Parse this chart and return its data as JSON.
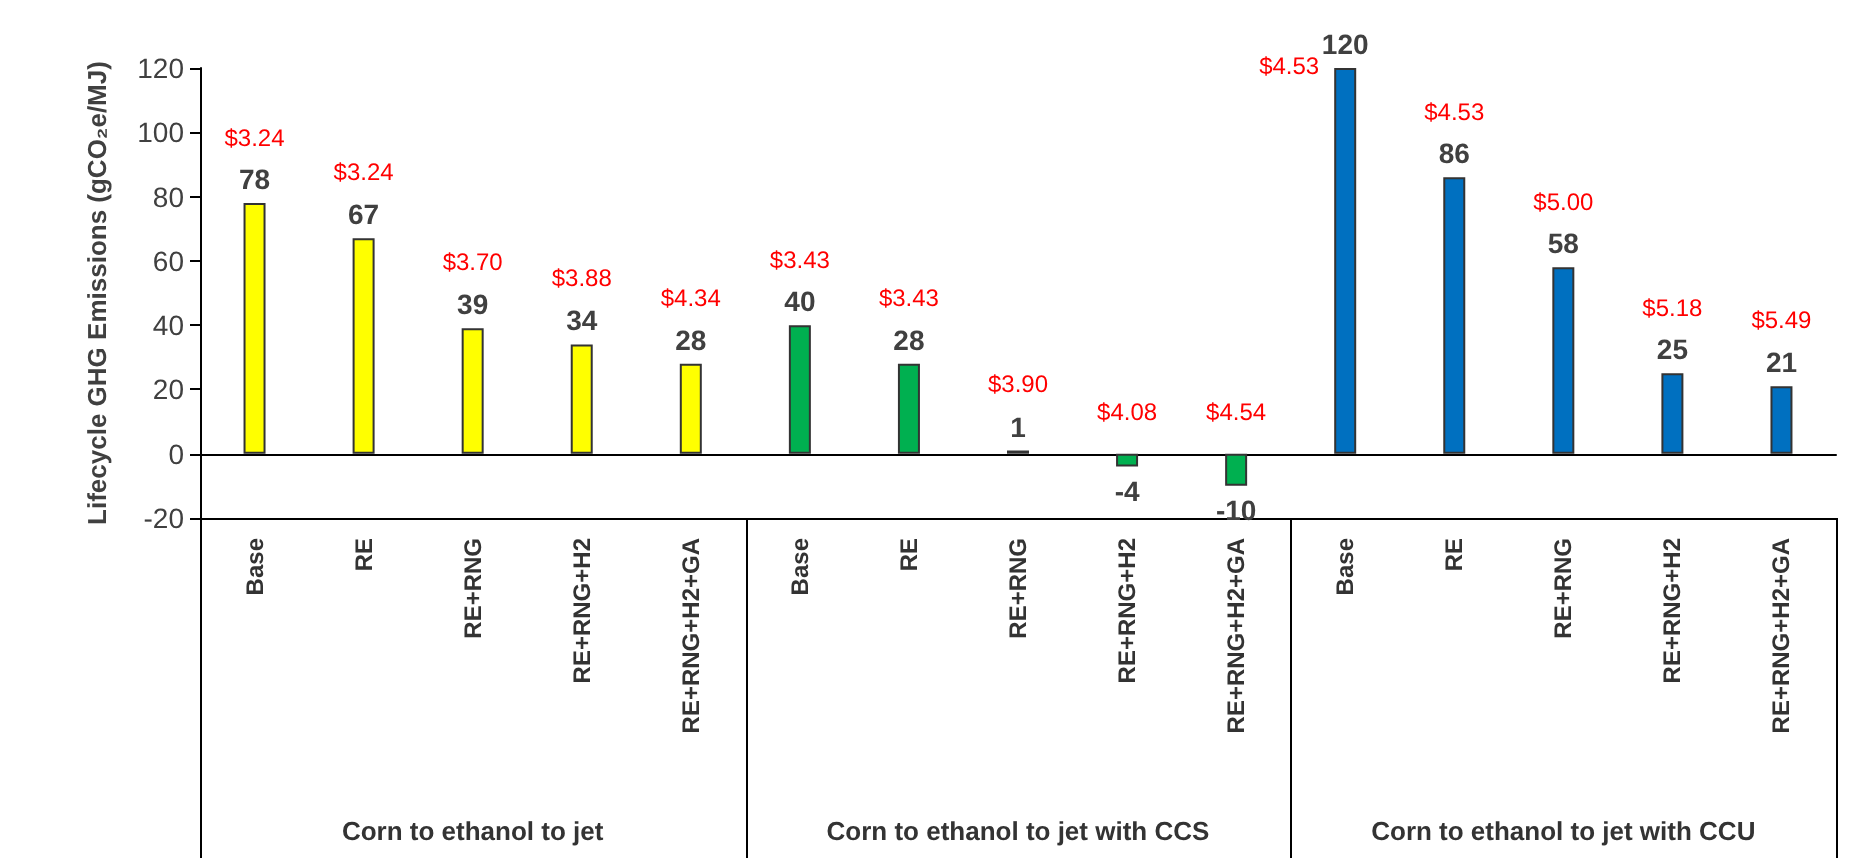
{
  "chart_data": {
    "type": "bar",
    "ylabel": "Lifecycle GHG Emissions (gCO₂e/MJ)",
    "categories": [
      "Base",
      "RE",
      "RE+RNG",
      "RE+RNG+H2",
      "RE+RNG+H2+GA",
      "Base",
      "RE",
      "RE+RNG",
      "RE+RNG+H2",
      "RE+RNG+H2+GA",
      "Base",
      "RE",
      "RE+RNG",
      "RE+RNG+H2",
      "RE+RNG+H2+GA"
    ],
    "series": [
      {
        "color": "#ffff00",
        "values": [
          78,
          67,
          39,
          34,
          28,
          null,
          null,
          null,
          null,
          null,
          null,
          null,
          null,
          null,
          null
        ]
      },
      {
        "color": "#00b050",
        "values": [
          null,
          null,
          null,
          null,
          null,
          40,
          28,
          1,
          -4,
          -10,
          null,
          null,
          null,
          null,
          null
        ]
      },
      {
        "color": "#0070c0",
        "values": [
          null,
          null,
          null,
          null,
          null,
          null,
          null,
          null,
          null,
          null,
          120,
          86,
          58,
          25,
          21
        ]
      }
    ],
    "ylim": [
      -20,
      120
    ],
    "yticks": [
      -20,
      0,
      20,
      40,
      60,
      80,
      100,
      120
    ],
    "data_labels": true,
    "annotations": [
      "$3.24",
      "$3.24",
      "$3.70",
      "$3.88",
      "$4.34",
      "$3.43",
      "$3.43",
      "$3.90",
      "$4.08",
      "$4.54",
      "$4.53",
      "$4.53",
      "$5.00",
      "$5.18",
      "$5.49",
      "Corn to ethanol to jet",
      "Corn to ethanol to jet with CCS",
      "Corn to ethanol to jet with CCU"
    ]
  }
}
